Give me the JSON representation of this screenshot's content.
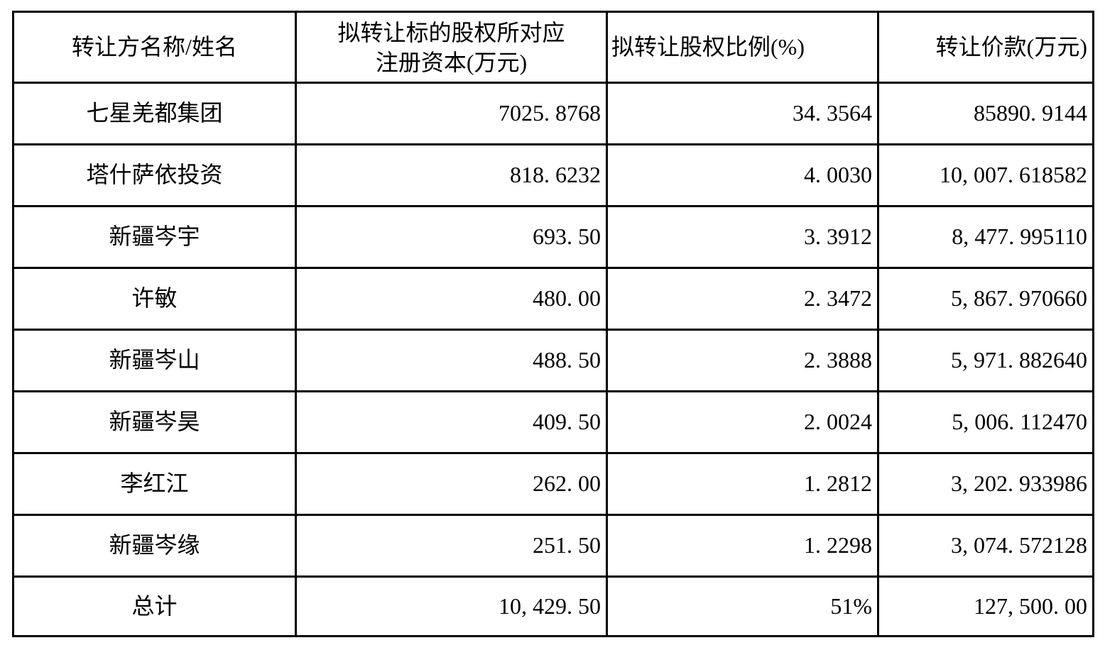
{
  "page": {
    "background_color": "#ffffff",
    "border_color": "#000000",
    "text_color": "#000000"
  },
  "table": {
    "headers": {
      "transferor": "转让方名称/姓名",
      "registered_capital_line1": "拟转让标的股权所对应",
      "registered_capital_line2": "注册资本(万元)",
      "equity_ratio": "拟转让股权比例(%)",
      "transfer_price": "转让价款(万元)"
    },
    "rows": [
      {
        "name": "七星羌都集团",
        "registered_capital": "7025.8768",
        "equity_ratio": "34.3564",
        "transfer_price": "85890.9144"
      },
      {
        "name": "塔什萨依投资",
        "registered_capital": "818.6232",
        "equity_ratio": "4.0030",
        "transfer_price": "10,007.618582"
      },
      {
        "name": "新疆岑宇",
        "registered_capital": "693.50",
        "equity_ratio": "3.3912",
        "transfer_price": "8,477.995110"
      },
      {
        "name": "许敏",
        "registered_capital": "480.00",
        "equity_ratio": "2.3472",
        "transfer_price": "5,867.970660"
      },
      {
        "name": "新疆岑山",
        "registered_capital": "488.50",
        "equity_ratio": "2.3888",
        "transfer_price": "5,971.882640"
      },
      {
        "name": "新疆岑昊",
        "registered_capital": "409.50",
        "equity_ratio": "2.0024",
        "transfer_price": "5,006.112470"
      },
      {
        "name": "李红江",
        "registered_capital": "262.00",
        "equity_ratio": "1.2812",
        "transfer_price": "3,202.933986"
      },
      {
        "name": "新疆岑缘",
        "registered_capital": "251.50",
        "equity_ratio": "1.2298",
        "transfer_price": "3,074.572128"
      },
      {
        "name": "总计",
        "registered_capital": "10,429.50",
        "equity_ratio": "51%",
        "transfer_price": "127,500.00"
      }
    ]
  }
}
